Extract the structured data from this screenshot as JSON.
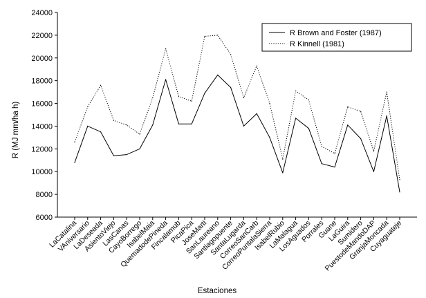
{
  "chart_data": {
    "type": "line",
    "title": "",
    "xlabel": "Estaciones",
    "ylabel": "R (MJ mm/ha h)",
    "ylim": [
      6000,
      24000
    ],
    "yticks": [
      6000,
      8000,
      10000,
      12000,
      14000,
      16000,
      18000,
      20000,
      22000,
      24000
    ],
    "ytick_labels": [
      "6000",
      "8000",
      "10000",
      "12000",
      "14000",
      "16000",
      "18000",
      "20000",
      "22000",
      "24000"
    ],
    "grid": false,
    "legend_position": "top-right",
    "categories": [
      "LaCatalina",
      "VAniversario",
      "LaDeseada",
      "AsientoViejo",
      "LasCanas",
      "CayoBorrego",
      "IsabelMaia",
      "QuemadodePineda",
      "Fincalamub",
      "PicaPica",
      "JoseMarti",
      "SanLaureano",
      "Santiagopuente",
      "SantaLugarda",
      "CorreoSanCarb",
      "CorreoPuntalaSierra",
      "IsabelRubio",
      "LaMalagua",
      "LosAguados",
      "Porrales",
      "Guane",
      "LaGuira",
      "Sumidero",
      "PuestodeMandoDAP",
      "GranjaMoncada",
      "Cuyaguateje"
    ],
    "series": [
      {
        "name": "R Brown and Foster (1987)",
        "style": "solid",
        "values": [
          10800,
          14000,
          13500,
          11400,
          11500,
          12000,
          14100,
          18100,
          14200,
          14200,
          16900,
          18500,
          17400,
          14000,
          15100,
          13000,
          9900,
          14700,
          13800,
          10700,
          10400,
          14100,
          12900,
          10000,
          14900,
          8200
        ]
      },
      {
        "name": "R Kinnell (1981)",
        "style": "dotted",
        "values": [
          12600,
          15700,
          17600,
          14500,
          14100,
          13300,
          16500,
          20800,
          16600,
          16200,
          21900,
          22000,
          20300,
          16500,
          19300,
          16000,
          11100,
          17100,
          16300,
          12200,
          11600,
          15700,
          15300,
          11800,
          17000,
          9300
        ]
      }
    ]
  }
}
